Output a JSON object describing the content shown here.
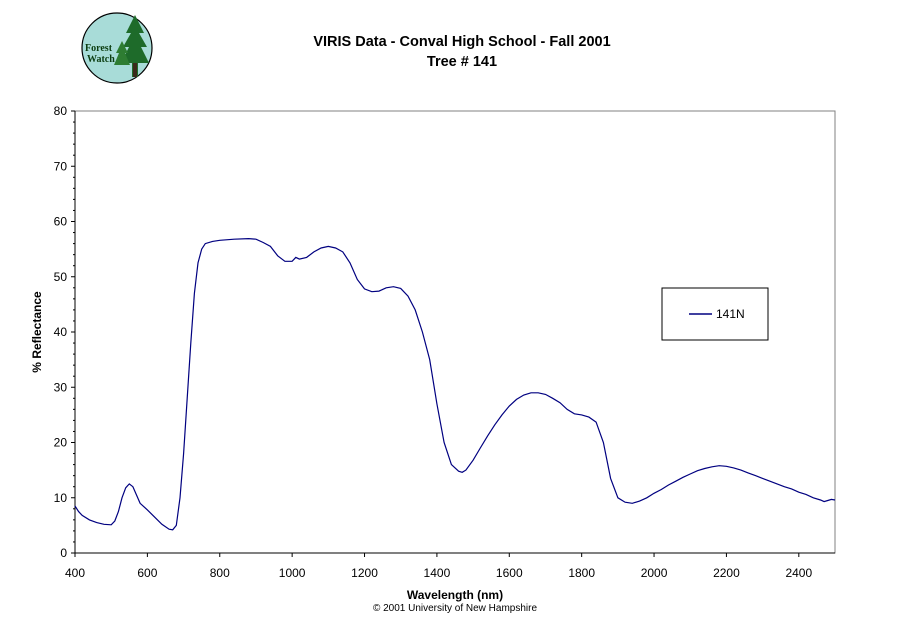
{
  "logo": {
    "line1": "Forest",
    "line2": "Watch"
  },
  "chart_data": {
    "type": "line",
    "title": "VIRIS Data - Conval High School - Fall 2001",
    "subtitle": "Tree # 141",
    "xlabel": "Wavelength (nm)",
    "ylabel": "% Reflectance",
    "xlim": [
      400,
      2500
    ],
    "ylim": [
      0,
      80
    ],
    "xticks": [
      400,
      600,
      800,
      1000,
      1200,
      1400,
      1600,
      1800,
      2000,
      2200,
      2400
    ],
    "yticks": [
      0,
      10,
      20,
      30,
      40,
      50,
      60,
      70,
      80
    ],
    "grid": false,
    "legend_position": "right",
    "copyright": "© 2001 University of New Hampshire",
    "series": [
      {
        "name": "141N",
        "color": "#000080",
        "x": [
          400,
          410,
          420,
          440,
          460,
          480,
          500,
          510,
          520,
          530,
          540,
          550,
          560,
          570,
          580,
          600,
          620,
          640,
          660,
          670,
          680,
          690,
          700,
          710,
          720,
          730,
          740,
          750,
          760,
          780,
          800,
          840,
          880,
          900,
          920,
          940,
          960,
          980,
          1000,
          1010,
          1020,
          1040,
          1060,
          1080,
          1100,
          1120,
          1140,
          1160,
          1180,
          1200,
          1220,
          1240,
          1260,
          1280,
          1300,
          1320,
          1340,
          1360,
          1380,
          1400,
          1420,
          1440,
          1460,
          1470,
          1480,
          1500,
          1520,
          1540,
          1560,
          1580,
          1600,
          1620,
          1640,
          1660,
          1680,
          1700,
          1720,
          1740,
          1760,
          1780,
          1800,
          1820,
          1840,
          1860,
          1880,
          1900,
          1920,
          1940,
          1960,
          1980,
          2000,
          2020,
          2040,
          2060,
          2080,
          2100,
          2120,
          2140,
          2160,
          2180,
          2200,
          2220,
          2240,
          2260,
          2280,
          2300,
          2320,
          2340,
          2360,
          2380,
          2400,
          2420,
          2440,
          2460,
          2470,
          2480,
          2490,
          2500
        ],
        "y": [
          8.5,
          7.5,
          6.8,
          6.0,
          5.5,
          5.2,
          5.1,
          5.8,
          7.5,
          10.0,
          11.8,
          12.5,
          12.0,
          10.5,
          9.0,
          7.8,
          6.5,
          5.2,
          4.3,
          4.2,
          5.0,
          10.0,
          18.0,
          28.0,
          38.0,
          47.0,
          52.5,
          55.0,
          56.0,
          56.4,
          56.6,
          56.8,
          56.9,
          56.8,
          56.2,
          55.5,
          53.8,
          52.8,
          52.8,
          53.5,
          53.2,
          53.5,
          54.5,
          55.2,
          55.5,
          55.2,
          54.5,
          52.5,
          49.5,
          47.8,
          47.3,
          47.4,
          48.0,
          48.2,
          47.9,
          46.5,
          44.0,
          40.0,
          35.0,
          27.0,
          20.0,
          16.0,
          14.8,
          14.6,
          15.0,
          16.8,
          19.0,
          21.2,
          23.2,
          25.0,
          26.6,
          27.8,
          28.6,
          29.0,
          29.0,
          28.7,
          28.0,
          27.2,
          26.0,
          25.2,
          25.0,
          24.6,
          23.7,
          20.0,
          13.5,
          10.0,
          9.2,
          9.0,
          9.4,
          10.0,
          10.8,
          11.5,
          12.3,
          13.0,
          13.7,
          14.3,
          14.9,
          15.3,
          15.6,
          15.8,
          15.7,
          15.4,
          15.0,
          14.5,
          14.0,
          13.5,
          13.0,
          12.5,
          12.0,
          11.6,
          11.0,
          10.6,
          10.0,
          9.6,
          9.3,
          9.5,
          9.7,
          9.6
        ]
      }
    ]
  }
}
